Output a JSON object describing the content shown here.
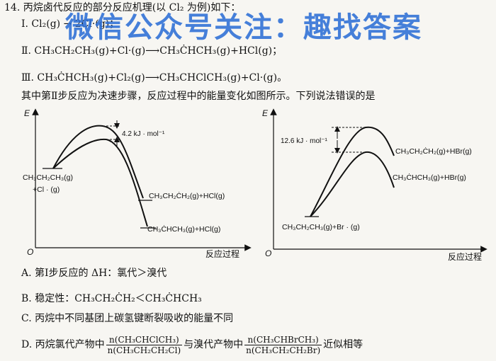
{
  "question": {
    "stem": "14. 丙烷卤代反应的部分反应机理(以 Cl₂ 为例)如下：",
    "step1": "Ⅰ. Cl₂(g) → 2Cl·(g)；",
    "step2": "Ⅱ. CH₃CH₂CH₃(g)+Cl·(g)⟶CH₃ĊHCH₃(g)+HCl(g)；",
    "step3": "Ⅲ. CH₃ĊHCH₃(g)+Cl₂(g)⟶CH₃CHClCH₃(g)+Cl·(g)。",
    "prompt": "其中第Ⅱ步反应为决速步骤，反应过程中的能量变化如图所示。下列说法错误的是"
  },
  "watermark": "微信公众号关注：趣找答案",
  "left_chart": {
    "y_axis": "E",
    "x_axis": "反应过程",
    "origin": "O",
    "energy_gap": "4.2 kJ · mol⁻¹",
    "reactant_line1": "CH₃CH₂CH₃(g)",
    "reactant_line2": "+Cl · (g)",
    "product_upper": "CH₃CH₂ĊH₂(g)+HCl(g)",
    "product_lower": "CH₃ĊHCH₃(g)+HCl(g)"
  },
  "right_chart": {
    "y_axis": "E",
    "x_axis": "反应过程",
    "origin": "O",
    "energy_gap": "12.6 kJ · mol⁻¹",
    "reactant": "CH₃CH₂CH₃(g)+Br · (g)",
    "product_upper": "CH₃CH₂ĊH₂(g)+HBr(g)",
    "product_lower": "CH₃ĊHCH₃(g)+HBr(g)"
  },
  "options": {
    "A": "A. 第Ⅰ步反应的 ΔH：氯代＞溴代",
    "B": "B. 稳定性：CH₃CH₂ĊH₂＜CH₃ĊHCH₃",
    "C": "C. 丙烷中不同基团上碳氢键断裂吸收的能量不同",
    "D_prefix": "D. 丙烷氯代产物中",
    "D_frac1_num": "n(CH₃CHClCH₃)",
    "D_frac1_den": "n(CH₃CH₂CH₂Cl)",
    "D_mid": "与溴代产物中",
    "D_frac2_num": "n(CH₃CHBrCH₃)",
    "D_frac2_den": "n(CH₃CH₂CH₂Br)",
    "D_suffix": "近似相等"
  }
}
